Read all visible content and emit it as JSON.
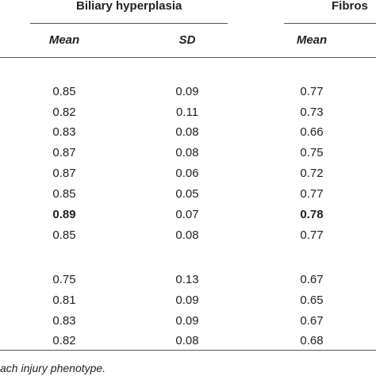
{
  "table": {
    "groups": [
      {
        "title": "Biliary hyperplasia"
      },
      {
        "title": "Fibros"
      }
    ],
    "columns": [
      {
        "header": "Mean"
      },
      {
        "header": "SD"
      },
      {
        "header": "Mean"
      }
    ],
    "rows": [
      {
        "cells": [
          "0.85",
          "0.09",
          "0.77"
        ],
        "bold": [
          false,
          false,
          false
        ]
      },
      {
        "cells": [
          "0.82",
          "0.11",
          "0.73"
        ],
        "bold": [
          false,
          false,
          false
        ]
      },
      {
        "cells": [
          "0.83",
          "0.08",
          "0.66"
        ],
        "bold": [
          false,
          false,
          false
        ]
      },
      {
        "cells": [
          "0.87",
          "0.08",
          "0.75"
        ],
        "bold": [
          false,
          false,
          false
        ]
      },
      {
        "cells": [
          "0.87",
          "0.06",
          "0.72"
        ],
        "bold": [
          false,
          false,
          false
        ]
      },
      {
        "cells": [
          "0.85",
          "0.05",
          "0.77"
        ],
        "bold": [
          false,
          false,
          false
        ]
      },
      {
        "cells": [
          "0.89",
          "0.07",
          "0.78"
        ],
        "bold": [
          true,
          false,
          true
        ]
      },
      {
        "cells": [
          "0.85",
          "0.08",
          "0.77"
        ],
        "bold": [
          false,
          false,
          false
        ]
      },
      {
        "cells": [
          "0.75",
          "0.13",
          "0.67"
        ],
        "bold": [
          false,
          false,
          false
        ]
      },
      {
        "cells": [
          "0.81",
          "0.09",
          "0.65"
        ],
        "bold": [
          false,
          false,
          false
        ]
      },
      {
        "cells": [
          "0.83",
          "0.09",
          "0.67"
        ],
        "bold": [
          false,
          false,
          false
        ]
      },
      {
        "cells": [
          "0.82",
          "0.08",
          "0.68"
        ],
        "bold": [
          false,
          false,
          false
        ]
      }
    ]
  },
  "footnote": "ach injury phenotype."
}
